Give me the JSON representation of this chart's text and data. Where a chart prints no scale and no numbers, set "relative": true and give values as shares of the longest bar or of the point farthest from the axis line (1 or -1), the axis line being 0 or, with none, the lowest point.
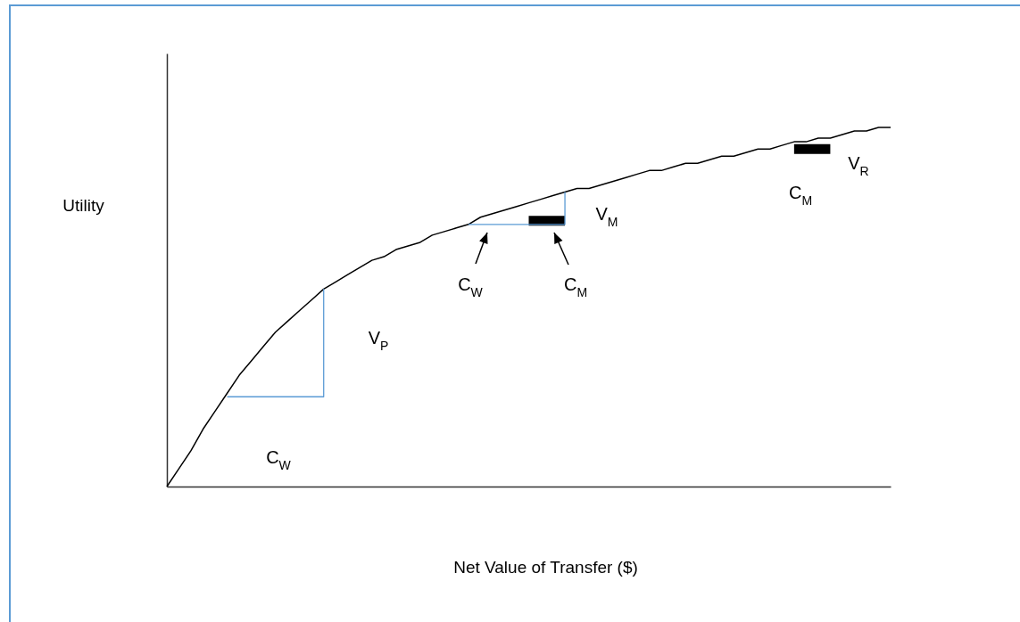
{
  "chart_data": {
    "type": "line",
    "xlabel": "Net Value of Transfer ($)",
    "ylabel": "Utility",
    "relative": true,
    "categories": [
      null,
      null,
      null,
      null,
      null,
      null,
      null,
      null,
      null,
      null,
      null,
      null,
      null,
      null,
      null,
      null,
      null,
      null,
      null,
      null,
      null,
      null,
      null,
      null,
      null,
      null,
      null,
      null,
      null,
      null,
      null,
      null,
      null,
      null,
      null,
      null,
      null,
      null,
      null,
      null,
      null,
      null,
      null,
      null,
      null,
      null,
      null,
      null,
      null,
      null,
      null,
      null,
      null,
      null,
      null,
      null,
      null,
      null,
      null,
      null,
      null
    ],
    "series": [
      {
        "color": "#000000",
        "values": [
          0,
          0.05,
          0.1,
          0.16,
          0.21,
          0.26,
          0.31,
          0.35,
          0.39,
          0.43,
          0.46,
          0.49,
          0.52,
          0.55,
          0.57,
          0.59,
          0.61,
          0.63,
          0.64,
          0.66,
          0.67,
          0.68,
          0.7,
          0.71,
          0.72,
          0.73,
          0.75,
          0.76,
          0.77,
          0.78,
          0.79,
          0.8,
          0.81,
          0.82,
          0.83,
          0.83,
          0.84,
          0.85,
          0.86,
          0.87,
          0.88,
          0.88,
          0.89,
          0.9,
          0.9,
          0.91,
          0.92,
          0.92,
          0.93,
          0.94,
          0.94,
          0.95,
          0.96,
          0.96,
          0.97,
          0.97,
          0.98,
          0.99,
          0.99,
          1.0,
          1.0
        ]
      },
      {
        "type": "step",
        "color": "#5b9bd5",
        "values": [
          null,
          null,
          null,
          null,
          null,
          0.25,
          0.25,
          0.25,
          0.25,
          0.25,
          0.25,
          0.25,
          0.25,
          0.55,
          null,
          null,
          null,
          null,
          null,
          null,
          null,
          null,
          null,
          null,
          null,
          null,
          null,
          null,
          null,
          null,
          null,
          null,
          null,
          null,
          null,
          null,
          null,
          null,
          null,
          null,
          null,
          null,
          null,
          null,
          null,
          null,
          null,
          null,
          null,
          null,
          null,
          null,
          null,
          null,
          null,
          null,
          null,
          null,
          null,
          null,
          null
        ]
      },
      {
        "type": "step",
        "color": "#5b9bd5",
        "values": [
          null,
          null,
          null,
          null,
          null,
          null,
          null,
          null,
          null,
          null,
          null,
          null,
          null,
          null,
          null,
          null,
          null,
          null,
          null,
          null,
          null,
          null,
          null,
          null,
          null,
          0.73,
          0.73,
          0.73,
          0.73,
          0.73,
          0.73,
          null,
          null,
          0.82,
          null,
          null,
          null,
          null,
          null,
          null,
          null,
          null,
          null,
          null,
          null,
          null,
          null,
          null,
          null,
          null,
          null,
          null,
          null,
          null,
          null,
          null,
          null,
          null,
          null,
          null,
          null
        ]
      },
      {
        "color": "#000000",
        "values": [
          null,
          null,
          null,
          null,
          null,
          null,
          null,
          null,
          null,
          null,
          null,
          null,
          null,
          null,
          null,
          null,
          null,
          null,
          null,
          null,
          null,
          null,
          null,
          null,
          null,
          null,
          null,
          null,
          null,
          null,
          0.74,
          0.74,
          0.74,
          0.74,
          null,
          null,
          null,
          null,
          null,
          null,
          null,
          null,
          null,
          null,
          null,
          null,
          null,
          null,
          null,
          null,
          null,
          null,
          null,
          null,
          null,
          null,
          null,
          null,
          null,
          null,
          null
        ]
      },
      {
        "color": "#000000",
        "values": [
          null,
          null,
          null,
          null,
          null,
          null,
          null,
          null,
          null,
          null,
          null,
          null,
          null,
          null,
          null,
          null,
          null,
          null,
          null,
          null,
          null,
          null,
          null,
          null,
          null,
          null,
          null,
          null,
          null,
          null,
          null,
          null,
          null,
          null,
          null,
          null,
          null,
          null,
          null,
          null,
          null,
          null,
          null,
          null,
          null,
          null,
          null,
          null,
          null,
          null,
          null,
          null,
          0.94,
          0.94,
          0.94,
          0.94,
          null,
          null,
          null,
          null,
          null
        ]
      }
    ],
    "annotations": [
      "C$_{W}$",
      "V$_{P}$",
      "C$_{W}$",
      "C$_{M}$",
      "V$_{M}$",
      "C$_{M}$",
      "V$_{R}$"
    ]
  }
}
